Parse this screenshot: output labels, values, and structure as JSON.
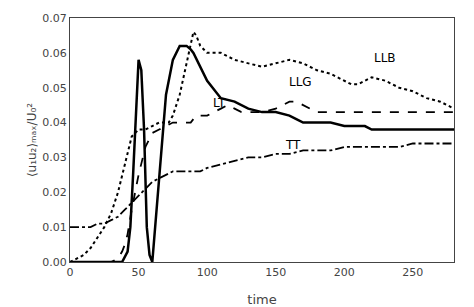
{
  "chart_data": {
    "type": "line",
    "xlabel": "time",
    "ylabel": "⟨u₁u₂⟩ₘₐₓ/U₀²",
    "xlim": [
      0,
      280
    ],
    "ylim": [
      0,
      0.07
    ],
    "xticks": [
      0,
      50,
      100,
      150,
      200,
      250
    ],
    "yticks": [
      {
        "value": 0,
        "label": "0.00"
      },
      0.01,
      0.02,
      0.03,
      0.04,
      0.05,
      0.06,
      0.07
    ],
    "grid": false,
    "series": [
      {
        "color": "#000000",
        "line_style": "solid",
        "x": [
          0,
          30,
          38,
          42,
          44,
          46,
          48,
          50,
          52,
          54,
          56,
          58,
          60,
          65,
          70,
          75,
          80,
          85,
          88,
          90,
          95,
          100,
          110,
          120,
          130,
          140,
          150,
          160,
          165,
          170,
          175,
          180,
          190,
          200,
          210,
          215,
          220,
          230,
          240,
          250,
          260,
          270,
          280
        ],
        "values": [
          0.0,
          0.0,
          0.0,
          0.003,
          0.01,
          0.025,
          0.043,
          0.058,
          0.055,
          0.038,
          0.01,
          0.002,
          0.0,
          0.025,
          0.048,
          0.058,
          0.062,
          0.062,
          0.061,
          0.06,
          0.056,
          0.052,
          0.047,
          0.046,
          0.044,
          0.043,
          0.043,
          0.042,
          0.041,
          0.04,
          0.04,
          0.04,
          0.04,
          0.039,
          0.039,
          0.039,
          0.038,
          0.038,
          0.038,
          0.038,
          0.038,
          0.038,
          0.038
        ]
      },
      {
        "color": "#000000",
        "line_style": "dotted",
        "x": [
          0,
          5,
          10,
          15,
          20,
          25,
          30,
          35,
          40,
          45,
          50,
          55,
          60,
          65,
          70,
          72,
          75,
          80,
          85,
          88,
          90,
          92,
          95,
          100,
          105,
          110,
          120,
          130,
          140,
          150,
          160,
          170,
          180,
          190,
          200,
          205,
          210,
          215,
          220,
          230,
          240,
          250,
          260,
          270,
          280
        ],
        "values": [
          0.0,
          0.001,
          0.002,
          0.004,
          0.007,
          0.01,
          0.014,
          0.02,
          0.028,
          0.036,
          0.038,
          0.038,
          0.039,
          0.04,
          0.04,
          0.04,
          0.042,
          0.048,
          0.057,
          0.063,
          0.066,
          0.065,
          0.062,
          0.06,
          0.06,
          0.06,
          0.058,
          0.057,
          0.056,
          0.057,
          0.058,
          0.057,
          0.055,
          0.054,
          0.052,
          0.051,
          0.051,
          0.052,
          0.053,
          0.052,
          0.05,
          0.049,
          0.047,
          0.046,
          0.044
        ]
      },
      {
        "color": "#000000",
        "line_style": "dashed",
        "x": [
          0,
          10,
          20,
          30,
          35,
          38,
          40,
          42,
          45,
          50,
          55,
          60,
          65,
          70,
          75,
          80,
          85,
          88,
          90,
          93,
          95,
          100,
          110,
          115,
          120,
          125,
          130,
          140,
          150,
          155,
          160,
          165,
          170,
          180,
          190,
          200,
          210,
          220,
          230,
          240,
          250,
          260,
          270,
          280
        ],
        "values": [
          0.0,
          0.0,
          0.0,
          0.0,
          0.001,
          0.003,
          0.005,
          0.008,
          0.015,
          0.025,
          0.033,
          0.037,
          0.038,
          0.039,
          0.04,
          0.04,
          0.04,
          0.04,
          0.041,
          0.041,
          0.042,
          0.042,
          0.044,
          0.045,
          0.044,
          0.043,
          0.043,
          0.043,
          0.044,
          0.045,
          0.046,
          0.046,
          0.045,
          0.043,
          0.043,
          0.043,
          0.043,
          0.043,
          0.043,
          0.043,
          0.043,
          0.043,
          0.043,
          0.043
        ]
      },
      {
        "color": "#000000",
        "line_style": "dashdot",
        "x": [
          0,
          5,
          10,
          15,
          20,
          25,
          30,
          35,
          40,
          45,
          50,
          55,
          60,
          65,
          70,
          75,
          80,
          85,
          90,
          95,
          100,
          110,
          120,
          130,
          140,
          150,
          160,
          170,
          180,
          190,
          200,
          210,
          220,
          230,
          240,
          250,
          260,
          270,
          280
        ],
        "values": [
          0.01,
          0.01,
          0.01,
          0.01,
          0.011,
          0.011,
          0.012,
          0.013,
          0.015,
          0.017,
          0.019,
          0.021,
          0.023,
          0.024,
          0.025,
          0.026,
          0.026,
          0.026,
          0.026,
          0.026,
          0.027,
          0.028,
          0.029,
          0.03,
          0.03,
          0.031,
          0.031,
          0.032,
          0.032,
          0.032,
          0.033,
          0.033,
          0.033,
          0.033,
          0.033,
          0.034,
          0.034,
          0.034,
          0.034
        ]
      }
    ],
    "annotations": [
      {
        "text": "LLG",
        "x": 158,
        "y": 0.049
      },
      {
        "text": "LLB",
        "x": 220,
        "y": 0.056
      },
      {
        "text": "LT",
        "x": 103,
        "y": 0.043
      },
      {
        "text": "TT",
        "x": 155,
        "y": 0.031
      }
    ]
  }
}
